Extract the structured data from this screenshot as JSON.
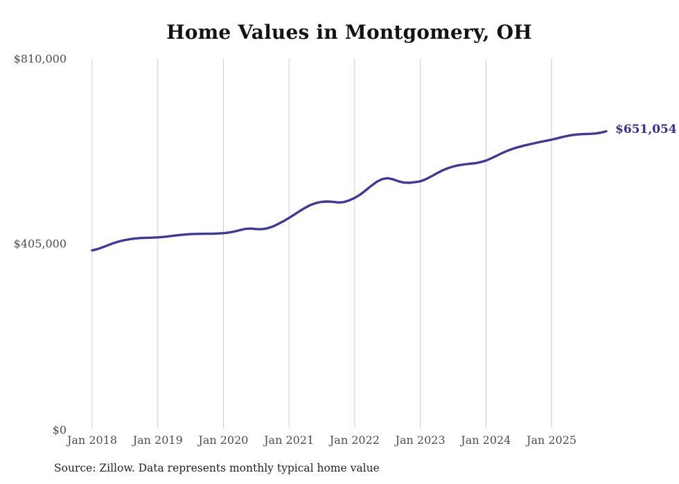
{
  "chart": {
    "title": "Home Values in Montgomery, OH",
    "source": "Source: Zillow. Data represents monthly typical home value",
    "end_label": "$651,054",
    "colors": {
      "line": "#3e3896",
      "end_label": "#32308d",
      "gridline": "#cccccc",
      "axis_text": "#4c4c4c",
      "title_text": "#131313",
      "source_text": "#222222",
      "background": "#ffffff"
    },
    "y_ticks": [
      {
        "value": 0,
        "label": "$0"
      },
      {
        "value": 405000,
        "label": "$405,000"
      },
      {
        "value": 810000,
        "label": "$810,000"
      }
    ]
  },
  "chart_data": {
    "type": "line",
    "title": "Home Values in Montgomery, OH",
    "ylabel": "",
    "xlabel": "",
    "unit": "USD",
    "ylim": [
      0,
      810000
    ],
    "grid": "vertical-only",
    "legend": "none",
    "end_label": "$651,054",
    "x_tick_labels": [
      "Jan 2018",
      "Jan 2019",
      "Jan 2020",
      "Jan 2021",
      "Jan 2022",
      "Jan 2023",
      "Jan 2024",
      "Jan 2025"
    ],
    "x_tick_indices": [
      0,
      12,
      24,
      36,
      48,
      60,
      72,
      84
    ],
    "months": [
      "2018-01",
      "2018-02",
      "2018-03",
      "2018-04",
      "2018-05",
      "2018-06",
      "2018-07",
      "2018-08",
      "2018-09",
      "2018-10",
      "2018-11",
      "2018-12",
      "2019-01",
      "2019-02",
      "2019-03",
      "2019-04",
      "2019-05",
      "2019-06",
      "2019-07",
      "2019-08",
      "2019-09",
      "2019-10",
      "2019-11",
      "2019-12",
      "2020-01",
      "2020-02",
      "2020-03",
      "2020-04",
      "2020-05",
      "2020-06",
      "2020-07",
      "2020-08",
      "2020-09",
      "2020-10",
      "2020-11",
      "2020-12",
      "2021-01",
      "2021-02",
      "2021-03",
      "2021-04",
      "2021-05",
      "2021-06",
      "2021-07",
      "2021-08",
      "2021-09",
      "2021-10",
      "2021-11",
      "2021-12",
      "2022-01",
      "2022-02",
      "2022-03",
      "2022-04",
      "2022-05",
      "2022-06",
      "2022-07",
      "2022-08",
      "2022-09",
      "2022-10",
      "2022-11",
      "2022-12",
      "2023-01",
      "2023-02",
      "2023-03",
      "2023-04",
      "2023-05",
      "2023-06",
      "2023-07",
      "2023-08",
      "2023-09",
      "2023-10",
      "2023-11",
      "2023-12",
      "2024-01",
      "2024-02",
      "2024-03",
      "2024-04",
      "2024-05",
      "2024-06",
      "2024-07",
      "2024-08",
      "2024-09",
      "2024-10",
      "2024-11",
      "2024-12",
      "2025-01",
      "2025-02",
      "2025-03",
      "2025-04",
      "2025-05",
      "2025-06",
      "2025-07",
      "2025-08",
      "2025-09",
      "2025-10",
      "2025-11"
    ],
    "values": [
      389600,
      392500,
      396800,
      401500,
      405900,
      409500,
      412300,
      414400,
      415900,
      416800,
      417300,
      417600,
      418200,
      419200,
      420500,
      422000,
      423400,
      424500,
      425300,
      425800,
      426000,
      426100,
      426300,
      426700,
      427400,
      428800,
      431000,
      434000,
      436800,
      437500,
      436500,
      436200,
      438000,
      442000,
      447500,
      453800,
      461000,
      468500,
      476300,
      483600,
      489700,
      493800,
      496200,
      497000,
      496300,
      494800,
      495500,
      499300,
      504900,
      512000,
      521200,
      531000,
      539800,
      546000,
      548200,
      545800,
      541300,
      538400,
      537900,
      539300,
      541200,
      545800,
      551900,
      558600,
      564800,
      569900,
      573700,
      576400,
      578300,
      579700,
      580900,
      583200,
      586600,
      591700,
      597600,
      603500,
      608700,
      613000,
      616600,
      619700,
      622500,
      625200,
      627800,
      630200,
      632600,
      635500,
      638600,
      641200,
      643100,
      644300,
      645000,
      645400,
      646200,
      648000,
      651054
    ]
  }
}
